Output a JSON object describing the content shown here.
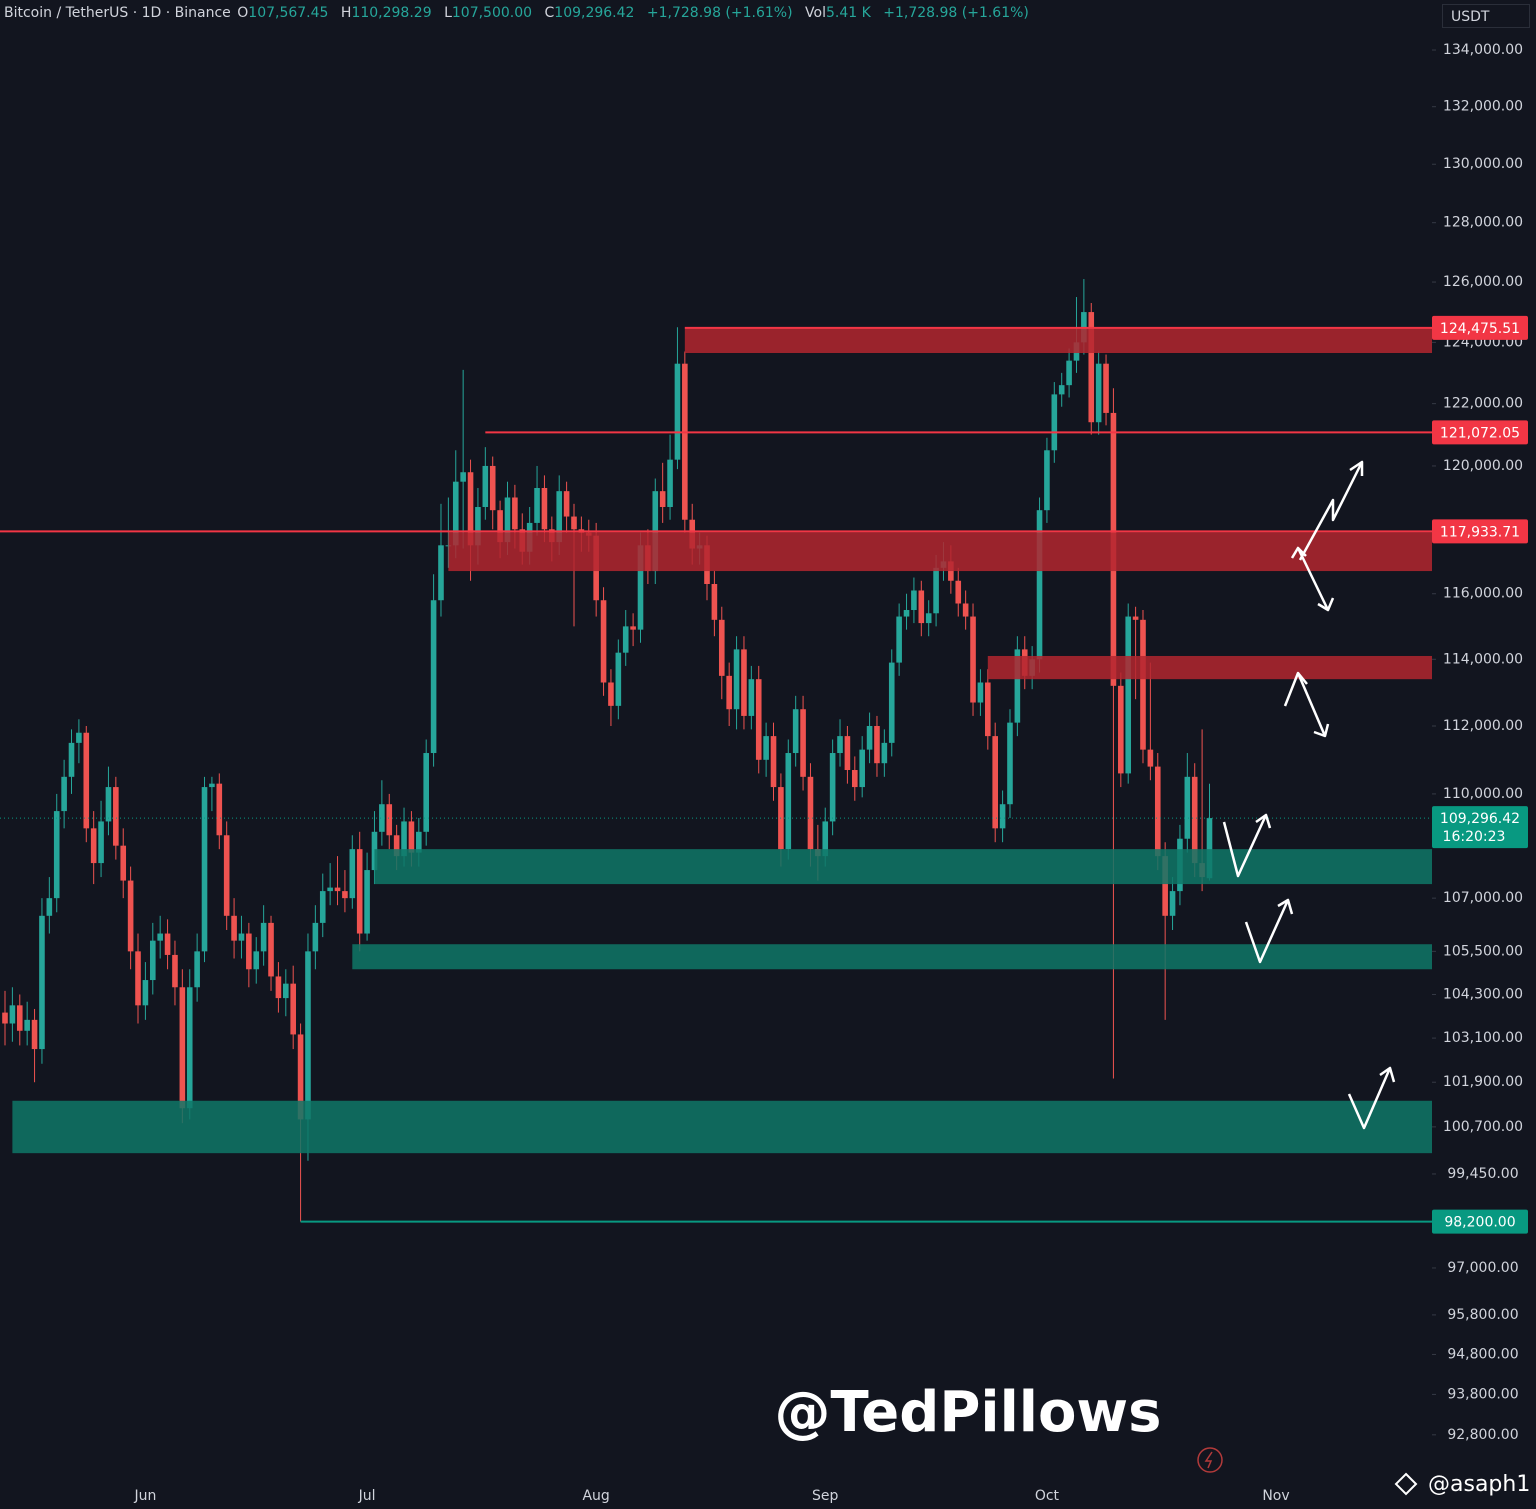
{
  "chart_data": {
    "type": "candlestick",
    "header": {
      "symbol": "Bitcoin / TetherUS · 1D · Binance",
      "o_label": "O",
      "o": "107,567.45",
      "h_label": "H",
      "h": "110,298.29",
      "l_label": "L",
      "l": "107,500.00",
      "c_label": "C",
      "c": "109,296.42",
      "change": "+1,728.98 (+1.61%)",
      "vol_label": "Vol",
      "vol": "5.41 K",
      "vol_change": "+1,728.98 (+1.61%)"
    },
    "currency": "USDT",
    "watermark": "@TedPillows",
    "credit": "@asaph1",
    "log_scale": true,
    "grid": false,
    "up_color": "#26a69a",
    "down_color": "#ef5350",
    "categories": [
      null,
      null,
      null,
      null,
      null,
      null,
      null,
      null,
      null,
      null,
      null,
      null,
      null,
      null,
      null,
      null,
      null,
      null,
      null,
      "Jun",
      null,
      null,
      null,
      null,
      null,
      null,
      null,
      null,
      null,
      null,
      null,
      null,
      null,
      null,
      null,
      null,
      null,
      null,
      null,
      null,
      null,
      null,
      null,
      null,
      null,
      null,
      null,
      null,
      null,
      "Jul",
      null,
      null,
      null,
      null,
      null,
      null,
      null,
      null,
      null,
      null,
      null,
      null,
      null,
      null,
      null,
      null,
      null,
      null,
      null,
      null,
      null,
      null,
      null,
      null,
      null,
      null,
      null,
      null,
      null,
      null,
      "Aug",
      null,
      null,
      null,
      null,
      null,
      null,
      null,
      null,
      null,
      null,
      null,
      null,
      null,
      null,
      null,
      null,
      null,
      null,
      null,
      null,
      null,
      null,
      null,
      null,
      null,
      null,
      null,
      null,
      null,
      null,
      "Sep",
      null,
      null,
      null,
      null,
      null,
      null,
      null,
      null,
      null,
      null,
      null,
      null,
      null,
      null,
      null,
      null,
      null,
      null,
      null,
      null,
      null,
      null,
      null,
      null,
      null,
      null,
      null,
      null,
      null,
      "Oct",
      null,
      null,
      null,
      null,
      null,
      null,
      null,
      null,
      null,
      null,
      null,
      null,
      null,
      null,
      null,
      null,
      null,
      null,
      null,
      null,
      null,
      null,
      null,
      null,
      null,
      null,
      null,
      null,
      null,
      null,
      "Nov"
    ],
    "candles": [
      [
        103800,
        104400,
        102900,
        103500
      ],
      [
        103500,
        104500,
        103000,
        104000
      ],
      [
        104000,
        104300,
        102900,
        103300
      ],
      [
        103300,
        104100,
        102900,
        103600
      ],
      [
        103600,
        103900,
        101900,
        102800
      ],
      [
        102800,
        107000,
        102400,
        106500
      ],
      [
        106500,
        107600,
        106000,
        107000
      ],
      [
        107000,
        110000,
        106600,
        109500
      ],
      [
        109500,
        111000,
        109000,
        110500
      ],
      [
        110500,
        111900,
        110000,
        111500
      ],
      [
        111500,
        112200,
        110900,
        111800
      ],
      [
        111800,
        112000,
        108600,
        109000
      ],
      [
        109000,
        109500,
        107400,
        108000
      ],
      [
        108000,
        109800,
        107600,
        109200
      ],
      [
        109200,
        110800,
        108800,
        110200
      ],
      [
        110200,
        110500,
        108100,
        108500
      ],
      [
        108500,
        109000,
        107000,
        107500
      ],
      [
        107500,
        107900,
        105000,
        105500
      ],
      [
        105500,
        106000,
        103500,
        104000
      ],
      [
        104000,
        105200,
        103600,
        104700
      ],
      [
        104700,
        106300,
        104300,
        105800
      ],
      [
        105800,
        106500,
        105300,
        106000
      ],
      [
        106000,
        106400,
        105000,
        105400
      ],
      [
        105400,
        105800,
        104000,
        104500
      ],
      [
        104500,
        105000,
        100800,
        101200
      ],
      [
        101200,
        105000,
        100900,
        104500
      ],
      [
        104500,
        106000,
        104100,
        105500
      ],
      [
        105500,
        110500,
        105200,
        110200
      ],
      [
        110200,
        110500,
        109500,
        110300
      ],
      [
        110300,
        110600,
        108400,
        108800
      ],
      [
        108800,
        109200,
        106100,
        106500
      ],
      [
        106500,
        107000,
        105300,
        105800
      ],
      [
        105800,
        106500,
        105300,
        106000
      ],
      [
        106000,
        106300,
        104500,
        105000
      ],
      [
        105000,
        105900,
        104600,
        105500
      ],
      [
        105500,
        106800,
        105100,
        106300
      ],
      [
        106300,
        106500,
        104400,
        104800
      ],
      [
        104800,
        105200,
        103800,
        104200
      ],
      [
        104200,
        105000,
        103700,
        104600
      ],
      [
        104600,
        105100,
        102800,
        103200
      ],
      [
        103200,
        103500,
        98200,
        100900
      ],
      [
        100900,
        106000,
        99800,
        105500
      ],
      [
        105500,
        106800,
        105000,
        106300
      ],
      [
        106300,
        107700,
        105900,
        107200
      ],
      [
        107200,
        108000,
        106800,
        107300
      ],
      [
        107300,
        108200,
        106800,
        107200
      ],
      [
        107200,
        107800,
        106600,
        107000
      ],
      [
        107000,
        108800,
        106700,
        108400
      ],
      [
        108400,
        108900,
        105500,
        106000
      ],
      [
        106000,
        108300,
        105800,
        107800
      ],
      [
        107800,
        109500,
        107400,
        108900
      ],
      [
        108900,
        110400,
        108500,
        109700
      ],
      [
        109700,
        110000,
        108400,
        108800
      ],
      [
        108800,
        109100,
        107800,
        108200
      ],
      [
        108200,
        109600,
        107900,
        109200
      ],
      [
        109200,
        109500,
        107900,
        108300
      ],
      [
        108300,
        109300,
        107900,
        108900
      ],
      [
        108900,
        111600,
        108500,
        111200
      ],
      [
        111200,
        116600,
        110800,
        115800
      ],
      [
        115800,
        118800,
        115300,
        117500
      ],
      [
        117500,
        119000,
        116800,
        117500
      ],
      [
        117500,
        120500,
        117100,
        119500
      ],
      [
        119500,
        123100,
        117400,
        119800
      ],
      [
        119800,
        120200,
        116400,
        117500
      ],
      [
        117500,
        119300,
        116900,
        118700
      ],
      [
        118700,
        120600,
        118300,
        120000
      ],
      [
        120000,
        120300,
        118000,
        118600
      ],
      [
        118600,
        118900,
        117100,
        117600
      ],
      [
        117600,
        119500,
        117200,
        119000
      ],
      [
        119000,
        119400,
        117400,
        118000
      ],
      [
        118000,
        118500,
        116900,
        117300
      ],
      [
        117300,
        118700,
        116900,
        118200
      ],
      [
        118200,
        120000,
        117800,
        119300
      ],
      [
        119300,
        119700,
        117600,
        118000
      ],
      [
        118000,
        118400,
        117000,
        117600
      ],
      [
        117600,
        119700,
        117200,
        119200
      ],
      [
        119200,
        119500,
        117900,
        118400
      ],
      [
        118400,
        118800,
        115000,
        118000
      ],
      [
        118000,
        118400,
        117300,
        117900
      ],
      [
        117900,
        118300,
        117300,
        117800
      ],
      [
        117800,
        118200,
        115300,
        115800
      ],
      [
        115800,
        116200,
        112900,
        113300
      ],
      [
        113300,
        113700,
        112000,
        112600
      ],
      [
        112600,
        114600,
        112200,
        114200
      ],
      [
        114200,
        115500,
        113800,
        115000
      ],
      [
        115000,
        115400,
        114400,
        114900
      ],
      [
        114900,
        117900,
        114500,
        117500
      ],
      [
        117500,
        118000,
        116300,
        116700
      ],
      [
        116700,
        119600,
        116300,
        119200
      ],
      [
        119200,
        120100,
        118200,
        118700
      ],
      [
        118700,
        121000,
        118300,
        120200
      ],
      [
        120200,
        124500,
        119900,
        123300
      ],
      [
        123300,
        123700,
        117900,
        118300
      ],
      [
        118300,
        118800,
        116900,
        117400
      ],
      [
        117400,
        117900,
        116900,
        117500
      ],
      [
        117500,
        117800,
        115800,
        116300
      ],
      [
        116300,
        116700,
        114700,
        115200
      ],
      [
        115200,
        115600,
        112800,
        113500
      ],
      [
        113500,
        113900,
        112000,
        112500
      ],
      [
        112500,
        114700,
        111900,
        114300
      ],
      [
        114300,
        114700,
        111900,
        112300
      ],
      [
        112300,
        113800,
        111900,
        113400
      ],
      [
        113400,
        113800,
        110600,
        111000
      ],
      [
        111000,
        112100,
        110500,
        111700
      ],
      [
        111700,
        112100,
        109800,
        110200
      ],
      [
        110200,
        110600,
        107900,
        108400
      ],
      [
        108400,
        111600,
        108100,
        111200
      ],
      [
        111200,
        112900,
        110800,
        112500
      ],
      [
        112500,
        112900,
        110100,
        110500
      ],
      [
        110500,
        110900,
        107900,
        108400
      ],
      [
        108400,
        109100,
        107500,
        108200
      ],
      [
        108200,
        109600,
        107900,
        109200
      ],
      [
        109200,
        111600,
        108800,
        111200
      ],
      [
        111200,
        112200,
        110800,
        111700
      ],
      [
        111700,
        112000,
        110300,
        110700
      ],
      [
        110700,
        111100,
        109800,
        110200
      ],
      [
        110200,
        111700,
        109900,
        111300
      ],
      [
        111300,
        112400,
        110900,
        112000
      ],
      [
        112000,
        112300,
        110500,
        110900
      ],
      [
        110900,
        111900,
        110500,
        111500
      ],
      [
        111500,
        114300,
        111100,
        113900
      ],
      [
        113900,
        115700,
        113500,
        115300
      ],
      [
        115300,
        116000,
        114900,
        115500
      ],
      [
        115500,
        116500,
        115100,
        116100
      ],
      [
        116100,
        116400,
        114700,
        115100
      ],
      [
        115100,
        115800,
        114700,
        115400
      ],
      [
        115400,
        117200,
        115000,
        116800
      ],
      [
        116800,
        117600,
        116400,
        117000
      ],
      [
        117000,
        117500,
        116000,
        116400
      ],
      [
        116400,
        116800,
        115300,
        115700
      ],
      [
        115700,
        116100,
        114900,
        115300
      ],
      [
        115300,
        115700,
        112300,
        112700
      ],
      [
        112700,
        113700,
        112300,
        113300
      ],
      [
        113300,
        113700,
        111300,
        111700
      ],
      [
        111700,
        112100,
        108600,
        109000
      ],
      [
        109000,
        110100,
        108600,
        109700
      ],
      [
        109700,
        112500,
        109300,
        112100
      ],
      [
        112100,
        114700,
        111700,
        114300
      ],
      [
        114300,
        114700,
        113100,
        113500
      ],
      [
        113500,
        114400,
        113100,
        114000
      ],
      [
        114000,
        119000,
        113600,
        118600
      ],
      [
        118600,
        120900,
        118200,
        120500
      ],
      [
        120500,
        122700,
        120100,
        122300
      ],
      [
        122300,
        123000,
        121900,
        122600
      ],
      [
        122600,
        123800,
        122200,
        123400
      ],
      [
        123400,
        125500,
        123000,
        124000
      ],
      [
        124000,
        126100,
        123600,
        125000
      ],
      [
        125000,
        125300,
        121000,
        121400
      ],
      [
        121400,
        123700,
        121000,
        123300
      ],
      [
        123300,
        123600,
        121300,
        121700
      ],
      [
        121700,
        122500,
        102000,
        113200
      ],
      [
        113200,
        113600,
        110200,
        110600
      ],
      [
        110600,
        115700,
        110300,
        115300
      ],
      [
        115300,
        115600,
        112800,
        115200
      ],
      [
        115200,
        115500,
        110900,
        111300
      ],
      [
        111300,
        113900,
        110400,
        110800
      ],
      [
        110800,
        111200,
        107800,
        108200
      ],
      [
        108200,
        108600,
        103600,
        106500
      ],
      [
        106500,
        107600,
        106100,
        107200
      ],
      [
        107200,
        109100,
        106800,
        108700
      ],
      [
        108700,
        111200,
        108300,
        110500
      ],
      [
        110500,
        110900,
        107600,
        108000
      ],
      [
        108000,
        111900,
        107200,
        107600
      ],
      [
        107567.45,
        110298.29,
        107500,
        109296.42
      ],
      null,
      null,
      null,
      null,
      null,
      null,
      null,
      null,
      null
    ],
    "ylim": [
      92060,
      135790
    ],
    "yticks": [
      {
        "value": 134000,
        "label": "134,000.00"
      },
      {
        "value": 132000,
        "label": "132,000.00"
      },
      {
        "value": 130000,
        "label": "130,000.00"
      },
      {
        "value": 128000,
        "label": "128,000.00"
      },
      {
        "value": 126000,
        "label": "126,000.00"
      },
      {
        "value": 124000,
        "label": "124,000.00"
      },
      {
        "value": 122000,
        "label": "122,000.00"
      },
      {
        "value": 120000,
        "label": "120,000.00"
      },
      {
        "value": 116000,
        "label": "116,000.00"
      },
      {
        "value": 114000,
        "label": "114,000.00"
      },
      {
        "value": 112000,
        "label": "112,000.00"
      },
      {
        "value": 110000,
        "label": "110,000.00"
      },
      {
        "value": 107000,
        "label": "107,000.00"
      },
      {
        "value": 105500,
        "label": "105,500.00"
      },
      {
        "value": 104300,
        "label": "104,300.00"
      },
      {
        "value": 103100,
        "label": "103,100.00"
      },
      {
        "value": 101900,
        "label": "101,900.00"
      },
      {
        "value": 100700,
        "label": "100,700.00"
      },
      {
        "value": 99450,
        "label": "99,450.00"
      },
      {
        "value": 97000,
        "label": "97,000.00"
      },
      {
        "value": 95800,
        "label": "95,800.00"
      },
      {
        "value": 94800,
        "label": "94,800.00"
      },
      {
        "value": 93800,
        "label": "93,800.00"
      },
      {
        "value": 92800,
        "label": "92,800.00"
      }
    ],
    "zones": [
      {
        "from": 92,
        "low": 123650,
        "high": 124500,
        "color": "#b3262f"
      },
      {
        "from": 60,
        "low": 116700,
        "high": 117900,
        "color": "#b3262f"
      },
      {
        "from": 133,
        "low": 113400,
        "high": 114100,
        "color": "#b3262f"
      },
      {
        "from": 50,
        "low": 107400,
        "high": 108400,
        "color": "#0f7767"
      },
      {
        "from": 47,
        "low": 105000,
        "high": 105700,
        "color": "#0f7767"
      },
      {
        "from": 1,
        "low": 100000,
        "high": 101400,
        "color": "#0f7767"
      }
    ],
    "levels": [
      {
        "from": 92,
        "value": 124475.51,
        "label": "124,475.51",
        "color": "#f23645"
      },
      {
        "from": 65,
        "value": 121072.05,
        "label": "121,072.05",
        "color": "#f23645"
      },
      {
        "from": 0,
        "value": 117933.71,
        "label": "117,933.71",
        "color": "#f23645"
      },
      {
        "from": 40,
        "value": 98200,
        "label": "98,200.00",
        "color": "#089981"
      }
    ],
    "current": {
      "value": 109296.42,
      "label": "109,296.42",
      "time": "16:20:23",
      "color": "#089981"
    }
  }
}
